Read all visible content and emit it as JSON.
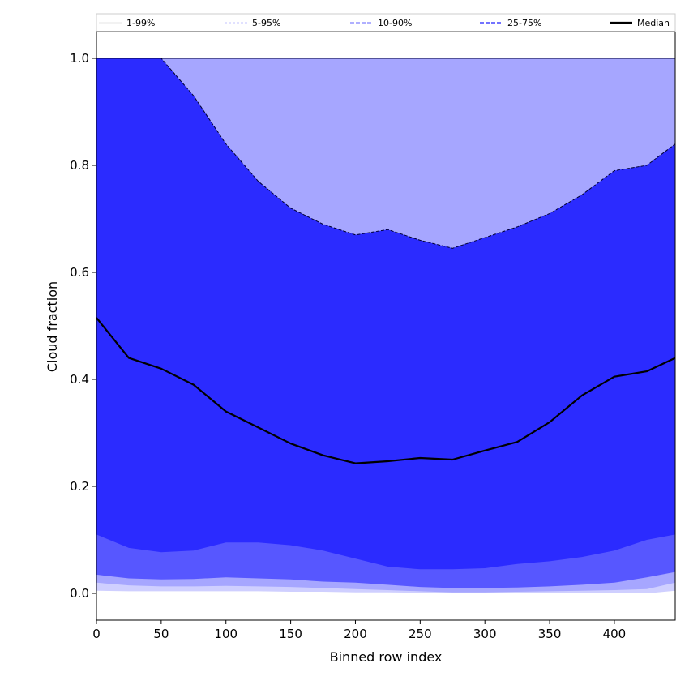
{
  "chart_data": {
    "type": "area",
    "xlabel": "Binned row index",
    "ylabel": "Cloud fraction",
    "xlim": [
      0,
      447
    ],
    "ylim": [
      -0.05,
      1.05
    ],
    "xticks": [
      "0",
      "50",
      "100",
      "150",
      "200",
      "250",
      "300",
      "350",
      "400"
    ],
    "yticks": [
      "0.0",
      "0.2",
      "0.4",
      "0.6",
      "0.8",
      "1.0"
    ],
    "grid": false,
    "legend_position": "top",
    "colors": {
      "band_1_99": "#cfcfff",
      "band_5_95": "#a6a6ff",
      "band_10_90": "#5757ff",
      "band_25_75": "#2b2bff",
      "median": "#000000"
    },
    "x": [
      0,
      25,
      50,
      75,
      100,
      125,
      150,
      175,
      200,
      225,
      250,
      275,
      300,
      325,
      350,
      375,
      400,
      425,
      447
    ],
    "series": [
      {
        "name": "1-99%",
        "lower": [
          0.005,
          0.004,
          0.004,
          0.004,
          0.004,
          0.004,
          0.003,
          0.003,
          0.002,
          0.002,
          0.001,
          0.0,
          0.0,
          0.0,
          0.0,
          0.0,
          0.0,
          0.0,
          0.005
        ],
        "upper": [
          1.0,
          1.0,
          1.0,
          1.0,
          1.0,
          1.0,
          1.0,
          1.0,
          1.0,
          1.0,
          1.0,
          1.0,
          1.0,
          1.0,
          1.0,
          1.0,
          1.0,
          1.0,
          1.0
        ]
      },
      {
        "name": "5-95%",
        "lower": [
          0.02,
          0.015,
          0.013,
          0.013,
          0.014,
          0.013,
          0.012,
          0.01,
          0.008,
          0.006,
          0.004,
          0.002,
          0.002,
          0.003,
          0.004,
          0.005,
          0.006,
          0.008,
          0.02
        ],
        "upper": [
          1.0,
          1.0,
          1.0,
          1.0,
          1.0,
          1.0,
          1.0,
          1.0,
          1.0,
          1.0,
          1.0,
          1.0,
          1.0,
          1.0,
          1.0,
          1.0,
          1.0,
          1.0,
          1.0
        ]
      },
      {
        "name": "10-90%",
        "lower": [
          0.035,
          0.028,
          0.026,
          0.027,
          0.03,
          0.028,
          0.026,
          0.022,
          0.02,
          0.016,
          0.012,
          0.01,
          0.01,
          0.011,
          0.013,
          0.016,
          0.02,
          0.03,
          0.04
        ],
        "upper": [
          1.0,
          1.0,
          1.0,
          0.93,
          0.84,
          0.77,
          0.72,
          0.69,
          0.67,
          0.68,
          0.66,
          0.645,
          0.665,
          0.685,
          0.71,
          0.745,
          0.79,
          0.8,
          0.84
        ]
      },
      {
        "name": "25-75%",
        "lower": [
          0.11,
          0.085,
          0.077,
          0.08,
          0.095,
          0.095,
          0.09,
          0.08,
          0.065,
          0.05,
          0.045,
          0.045,
          0.047,
          0.055,
          0.06,
          0.068,
          0.08,
          0.1,
          0.11
        ],
        "upper": [
          1.0,
          1.0,
          1.0,
          0.93,
          0.84,
          0.77,
          0.72,
          0.69,
          0.67,
          0.68,
          0.66,
          0.645,
          0.665,
          0.685,
          0.71,
          0.745,
          0.79,
          0.8,
          0.84
        ]
      },
      {
        "name": "Median",
        "values": [
          0.515,
          0.44,
          0.42,
          0.39,
          0.34,
          0.31,
          0.28,
          0.258,
          0.243,
          0.247,
          0.253,
          0.25,
          0.267,
          0.283,
          0.32,
          0.37,
          0.405,
          0.415,
          0.44
        ]
      }
    ]
  }
}
